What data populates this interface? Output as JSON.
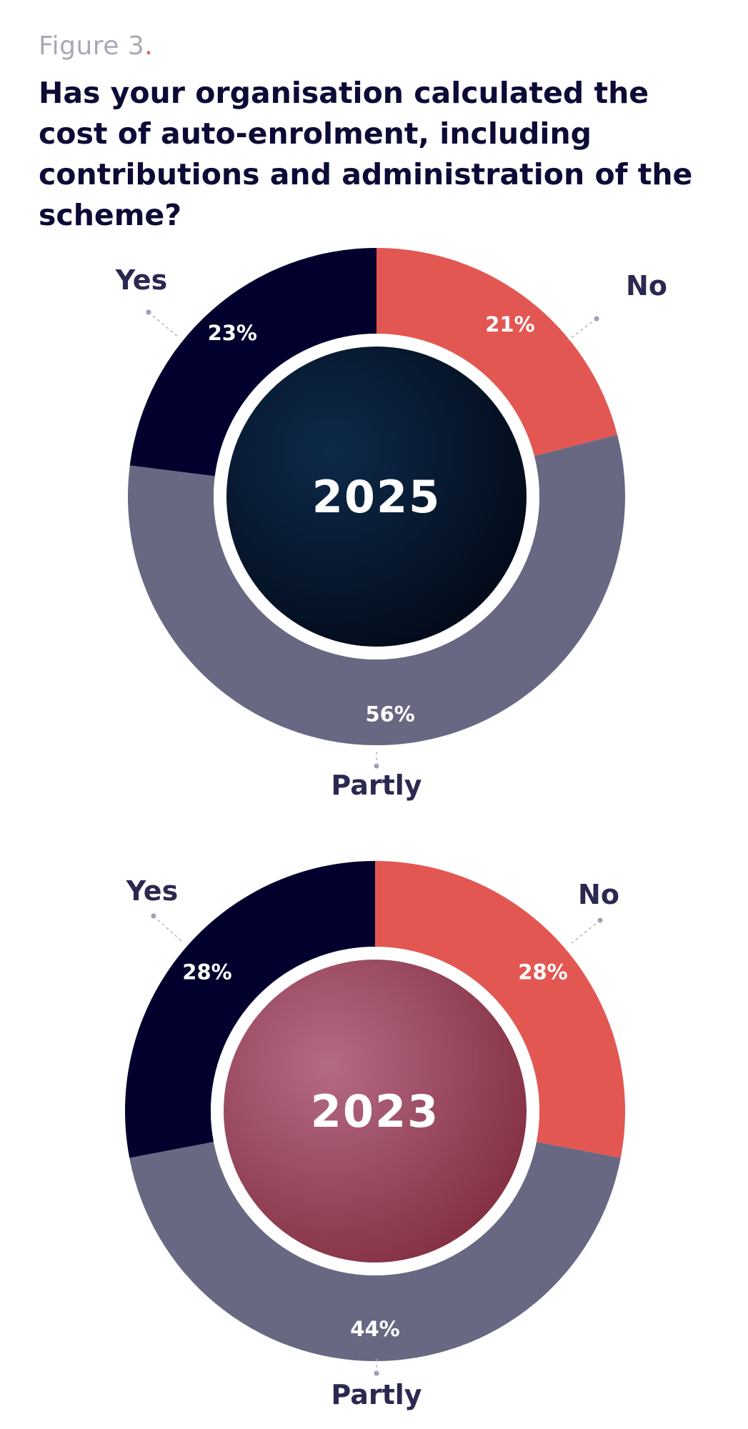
{
  "figure": {
    "label": "Figure 3",
    "label_dot": "."
  },
  "title": "Has your organisation calculated the cost of auto-enrolment, including contributions and administration of the scheme?",
  "colors": {
    "Yes": "#02012e",
    "No": "#e35753",
    "Partly": "#686883",
    "ring_gap": "#ffffff"
  },
  "chart_data": [
    {
      "type": "pie",
      "center_label": "2025",
      "categories": [
        "No",
        "Partly",
        "Yes"
      ],
      "values": [
        21,
        56,
        23
      ],
      "value_labels": [
        "21%",
        "56%",
        "23%"
      ],
      "center_fill": [
        "#0d2a4a",
        "#020714"
      ]
    },
    {
      "type": "pie",
      "center_label": "2023",
      "categories": [
        "No",
        "Partly",
        "Yes"
      ],
      "values": [
        28,
        44,
        28
      ],
      "value_labels": [
        "28%",
        "44%",
        "28%"
      ],
      "center_fill": [
        "#b56a85",
        "#7e2a3a"
      ]
    }
  ]
}
